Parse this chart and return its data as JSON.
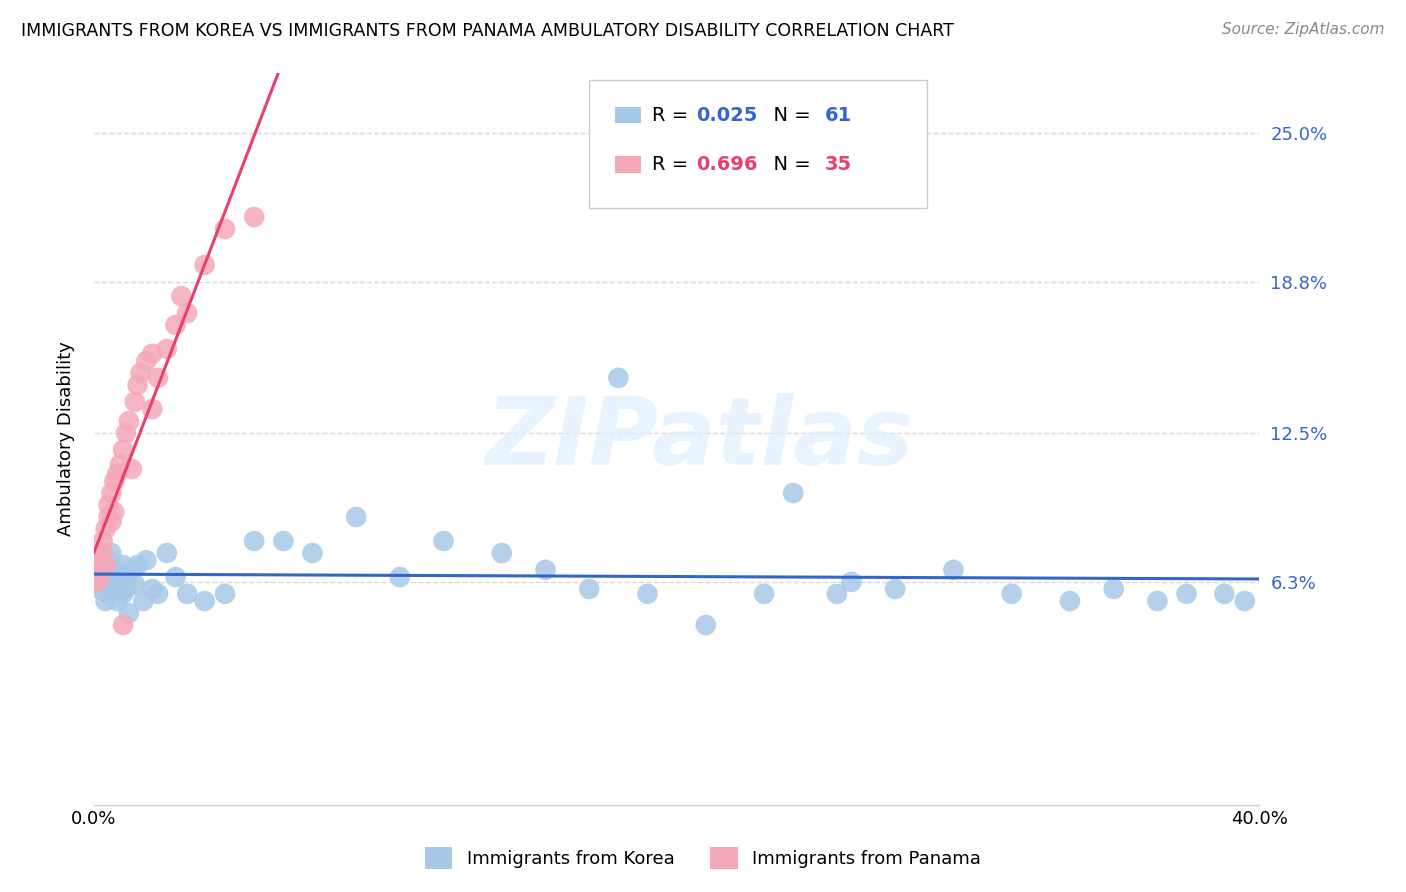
{
  "title": "IMMIGRANTS FROM KOREA VS IMMIGRANTS FROM PANAMA AMBULATORY DISABILITY CORRELATION CHART",
  "source": "Source: ZipAtlas.com",
  "ylabel": "Ambulatory Disability",
  "ytick_labels": [
    "6.3%",
    "12.5%",
    "18.8%",
    "25.0%"
  ],
  "ytick_values": [
    0.063,
    0.125,
    0.188,
    0.25
  ],
  "xlim": [
    0.0,
    0.4
  ],
  "ylim": [
    -0.03,
    0.275
  ],
  "legend_label_korea": "Immigrants from Korea",
  "legend_label_panama": "Immigrants from Panama",
  "korea_color": "#a8c8e8",
  "panama_color": "#f4a8b8",
  "korea_line_color": "#3366cc",
  "panama_line_color": "#e8406a",
  "watermark_text": "ZIPatlas",
  "background_color": "#ffffff",
  "grid_color": "#d8d8d8",
  "korea_scatter_x": [
    0.001,
    0.001,
    0.002,
    0.002,
    0.003,
    0.003,
    0.004,
    0.004,
    0.005,
    0.005,
    0.005,
    0.006,
    0.006,
    0.007,
    0.007,
    0.008,
    0.008,
    0.009,
    0.009,
    0.01,
    0.01,
    0.011,
    0.011,
    0.012,
    0.013,
    0.014,
    0.015,
    0.017,
    0.018,
    0.02,
    0.022,
    0.025,
    0.028,
    0.032,
    0.038,
    0.045,
    0.055,
    0.065,
    0.075,
    0.09,
    0.105,
    0.12,
    0.14,
    0.155,
    0.17,
    0.19,
    0.21,
    0.23,
    0.255,
    0.275,
    0.295,
    0.315,
    0.335,
    0.35,
    0.365,
    0.375,
    0.388,
    0.395,
    0.24,
    0.26,
    0.18
  ],
  "korea_scatter_y": [
    0.065,
    0.062,
    0.068,
    0.06,
    0.063,
    0.07,
    0.055,
    0.065,
    0.058,
    0.072,
    0.068,
    0.06,
    0.075,
    0.063,
    0.07,
    0.055,
    0.068,
    0.06,
    0.065,
    0.058,
    0.07,
    0.063,
    0.06,
    0.05,
    0.068,
    0.062,
    0.07,
    0.055,
    0.072,
    0.06,
    0.058,
    0.075,
    0.065,
    0.058,
    0.055,
    0.058,
    0.08,
    0.08,
    0.075,
    0.09,
    0.065,
    0.08,
    0.075,
    0.068,
    0.06,
    0.058,
    0.045,
    0.058,
    0.058,
    0.06,
    0.068,
    0.058,
    0.055,
    0.06,
    0.055,
    0.058,
    0.058,
    0.055,
    0.1,
    0.063,
    0.148
  ],
  "panama_scatter_x": [
    0.001,
    0.001,
    0.002,
    0.002,
    0.003,
    0.003,
    0.004,
    0.004,
    0.005,
    0.005,
    0.006,
    0.006,
    0.007,
    0.007,
    0.008,
    0.009,
    0.01,
    0.011,
    0.012,
    0.013,
    0.014,
    0.015,
    0.016,
    0.018,
    0.02,
    0.022,
    0.025,
    0.028,
    0.032,
    0.038,
    0.045,
    0.055,
    0.02,
    0.01,
    0.03
  ],
  "panama_scatter_y": [
    0.063,
    0.068,
    0.072,
    0.065,
    0.075,
    0.08,
    0.085,
    0.07,
    0.09,
    0.095,
    0.1,
    0.088,
    0.105,
    0.092,
    0.108,
    0.112,
    0.118,
    0.125,
    0.13,
    0.11,
    0.138,
    0.145,
    0.15,
    0.155,
    0.158,
    0.148,
    0.16,
    0.17,
    0.175,
    0.195,
    0.21,
    0.215,
    0.135,
    0.045,
    0.182
  ],
  "korea_line_x": [
    0.0,
    0.4
  ],
  "panama_line_x": [
    0.0,
    0.4
  ]
}
